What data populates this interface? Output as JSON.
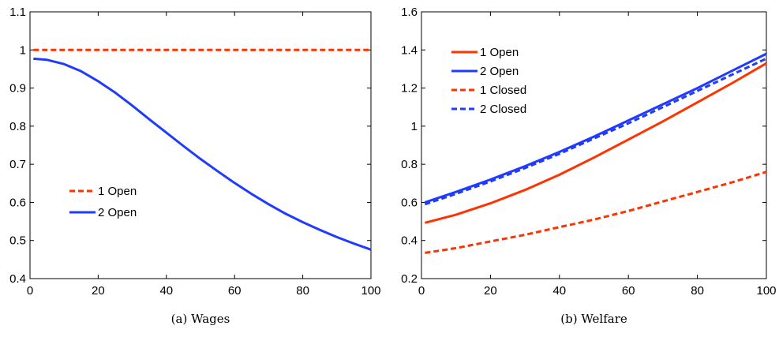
{
  "chart_data": [
    {
      "type": "line",
      "caption": "(a)  Wages",
      "xlim": [
        0,
        100
      ],
      "ylim": [
        0.4,
        1.1
      ],
      "xticks": [
        "0",
        "20",
        "40",
        "60",
        "80",
        "100"
      ],
      "yticks": [
        "0.4",
        "0.5",
        "0.6",
        "0.7",
        "0.8",
        "0.9",
        "1",
        "1.1"
      ],
      "legend_position": "center-left",
      "x": [
        1,
        5,
        10,
        15,
        20,
        25,
        30,
        35,
        40,
        45,
        50,
        55,
        60,
        65,
        70,
        75,
        80,
        85,
        90,
        95,
        100
      ],
      "series": [
        {
          "name": "1 Open",
          "color": "#ff3300",
          "dash": "dashed",
          "values": [
            1,
            1,
            1,
            1,
            1,
            1,
            1,
            1,
            1,
            1,
            1,
            1,
            1,
            1,
            1,
            1,
            1,
            1,
            1,
            1,
            1
          ]
        },
        {
          "name": "2 Open",
          "color": "#1f3bff",
          "dash": "solid",
          "values": [
            0.977,
            0.974,
            0.963,
            0.944,
            0.918,
            0.888,
            0.854,
            0.818,
            0.783,
            0.748,
            0.714,
            0.682,
            0.651,
            0.622,
            0.595,
            0.57,
            0.548,
            0.528,
            0.509,
            0.492,
            0.476
          ]
        }
      ]
    },
    {
      "type": "line",
      "caption": "(b)  Welfare",
      "xlim": [
        0,
        100
      ],
      "ylim": [
        0.2,
        1.6
      ],
      "xticks": [
        "0",
        "20",
        "40",
        "60",
        "80",
        "100"
      ],
      "yticks": [
        "0.2",
        "0.4",
        "0.6",
        "0.8",
        "1",
        "1.2",
        "1.4",
        "1.6"
      ],
      "legend_position": "top-left",
      "x": [
        1,
        10,
        20,
        30,
        40,
        50,
        60,
        70,
        80,
        90,
        100
      ],
      "series": [
        {
          "name": "1 Open",
          "color": "#ff3300",
          "dash": "solid",
          "values": [
            0.493,
            0.535,
            0.595,
            0.665,
            0.745,
            0.835,
            0.93,
            1.025,
            1.125,
            1.225,
            1.33
          ]
        },
        {
          "name": "2 Open",
          "color": "#1f3bff",
          "dash": "solid",
          "values": [
            0.6,
            0.655,
            0.72,
            0.79,
            0.865,
            0.945,
            1.03,
            1.115,
            1.2,
            1.29,
            1.38
          ]
        },
        {
          "name": "1 Closed",
          "color": "#ff3300",
          "dash": "dashed",
          "values": [
            0.335,
            0.36,
            0.395,
            0.43,
            0.47,
            0.51,
            0.555,
            0.605,
            0.655,
            0.705,
            0.76
          ]
        },
        {
          "name": "2 Closed",
          "color": "#1f3bff",
          "dash": "dashed",
          "values": [
            0.59,
            0.645,
            0.71,
            0.78,
            0.855,
            0.935,
            1.015,
            1.1,
            1.185,
            1.27,
            1.355
          ]
        }
      ]
    }
  ]
}
